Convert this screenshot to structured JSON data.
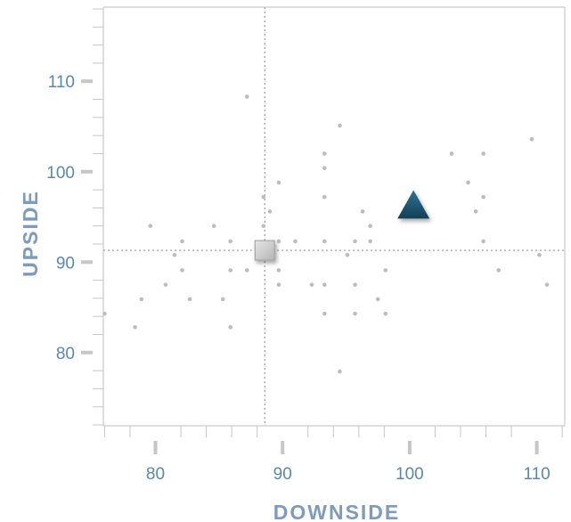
{
  "chart_data": {
    "type": "scatter",
    "title": "",
    "xlabel": "DOWNSIDE",
    "ylabel": "UPSIDE",
    "xlim": [
      75.9,
      112.2
    ],
    "ylim": [
      71.9,
      118.2
    ],
    "x_ticks": [
      80,
      90,
      100,
      110
    ],
    "y_ticks": [
      80,
      90,
      100,
      110
    ],
    "x_minor_step": 2,
    "y_minor_step": 2,
    "grid": false,
    "reference_lines": {
      "x": 88.6,
      "y": 91.3
    },
    "series": [
      {
        "marker": "dot",
        "color": "#bdbdbd",
        "points": [
          {
            "x": 76.0,
            "y": 84.3
          },
          {
            "x": 78.4,
            "y": 82.8
          },
          {
            "x": 78.9,
            "y": 85.9
          },
          {
            "x": 79.6,
            "y": 94.0
          },
          {
            "x": 80.8,
            "y": 87.5
          },
          {
            "x": 81.5,
            "y": 90.8
          },
          {
            "x": 82.1,
            "y": 92.3
          },
          {
            "x": 82.1,
            "y": 89.1
          },
          {
            "x": 82.7,
            "y": 85.9
          },
          {
            "x": 84.6,
            "y": 94.0
          },
          {
            "x": 85.3,
            "y": 85.9
          },
          {
            "x": 85.9,
            "y": 92.3
          },
          {
            "x": 85.9,
            "y": 89.1
          },
          {
            "x": 85.9,
            "y": 82.8
          },
          {
            "x": 87.2,
            "y": 108.3
          },
          {
            "x": 87.2,
            "y": 89.1
          },
          {
            "x": 88.5,
            "y": 97.2
          },
          {
            "x": 88.5,
            "y": 94.0
          },
          {
            "x": 89.0,
            "y": 95.6
          },
          {
            "x": 89.7,
            "y": 98.8
          },
          {
            "x": 89.7,
            "y": 92.3
          },
          {
            "x": 89.7,
            "y": 89.1
          },
          {
            "x": 89.7,
            "y": 87.5
          },
          {
            "x": 91.0,
            "y": 92.3
          },
          {
            "x": 92.3,
            "y": 87.5
          },
          {
            "x": 93.3,
            "y": 102.0
          },
          {
            "x": 93.3,
            "y": 100.4
          },
          {
            "x": 93.3,
            "y": 97.2
          },
          {
            "x": 93.3,
            "y": 92.3
          },
          {
            "x": 93.3,
            "y": 87.5
          },
          {
            "x": 93.3,
            "y": 84.3
          },
          {
            "x": 94.5,
            "y": 105.1
          },
          {
            "x": 94.5,
            "y": 77.9
          },
          {
            "x": 95.1,
            "y": 90.8
          },
          {
            "x": 95.7,
            "y": 92.3
          },
          {
            "x": 95.7,
            "y": 87.5
          },
          {
            "x": 95.7,
            "y": 84.3
          },
          {
            "x": 96.3,
            "y": 95.6
          },
          {
            "x": 96.9,
            "y": 94.0
          },
          {
            "x": 96.9,
            "y": 92.3
          },
          {
            "x": 97.5,
            "y": 85.9
          },
          {
            "x": 98.1,
            "y": 89.1
          },
          {
            "x": 98.1,
            "y": 84.3
          },
          {
            "x": 103.3,
            "y": 102.0
          },
          {
            "x": 104.6,
            "y": 98.8
          },
          {
            "x": 105.2,
            "y": 95.6
          },
          {
            "x": 105.8,
            "y": 102.0
          },
          {
            "x": 105.8,
            "y": 97.2
          },
          {
            "x": 105.8,
            "y": 92.3
          },
          {
            "x": 107.0,
            "y": 89.1
          },
          {
            "x": 109.6,
            "y": 103.6
          },
          {
            "x": 110.2,
            "y": 90.8
          },
          {
            "x": 110.8,
            "y": 87.5
          }
        ]
      },
      {
        "marker": "square",
        "color": "#c8c8c8",
        "points": [
          {
            "x": 88.6,
            "y": 91.3
          }
        ]
      },
      {
        "marker": "triangle",
        "color": "#1d5a78",
        "points": [
          {
            "x": 100.3,
            "y": 96.0
          }
        ]
      }
    ]
  }
}
